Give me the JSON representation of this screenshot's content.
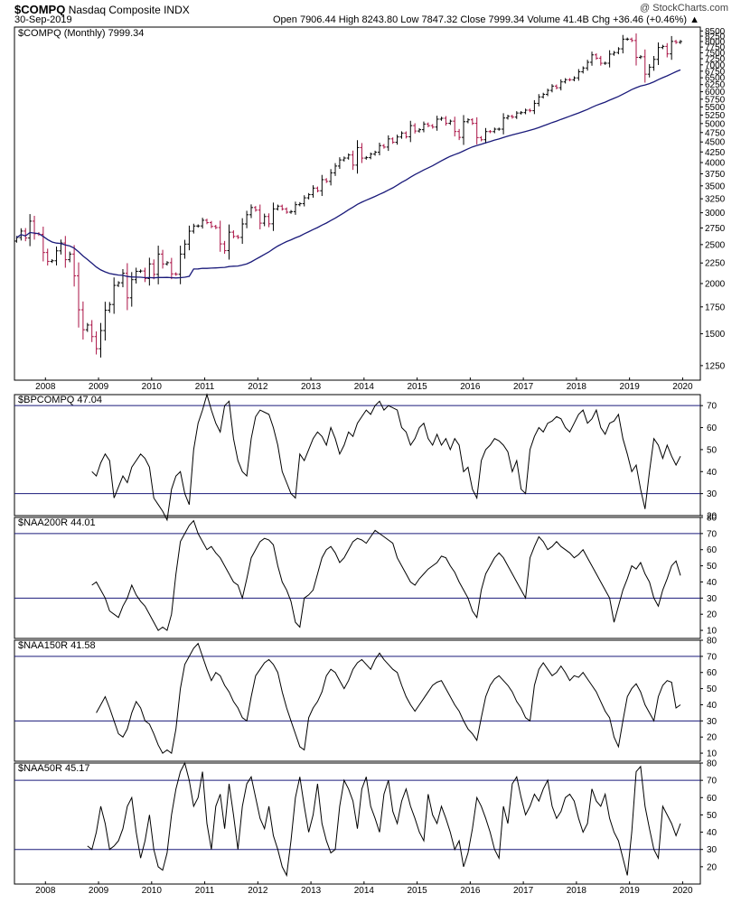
{
  "header": {
    "symbol": "$COMPQ",
    "name": "Nasdaq Composite INDX",
    "date": "30-Sep-2019",
    "ohlc": "Open 7906.44  High 8243.80  Low 7847.32  Close 7999.34  Volume 41.4B  Chg +36.46 (+0.46%) ▲",
    "logo": "@ StockCharts.com",
    "symbol_color": "#000000",
    "up_color": "#000000",
    "down_color": "#aa1144",
    "ma_color": "#1a1a7a",
    "band_color": "#1a1a7a"
  },
  "chart_data": [
    {
      "type": "ohlc",
      "title": "$COMPQ (Monthly) 7999.34",
      "log_scale": true,
      "ylim": [
        1150,
        8600
      ],
      "y_ticks": [
        1250,
        1500,
        1750,
        2000,
        2250,
        2500,
        2750,
        3000,
        3250,
        3500,
        3750,
        4000,
        4250,
        4500,
        4750,
        5000,
        5250,
        5500,
        5750,
        6000,
        6250,
        6500,
        6750,
        7000,
        7250,
        7500,
        7750,
        8000,
        8250,
        8500
      ],
      "x_tick_labels": [
        "2008",
        "2009",
        "2010",
        "2011",
        "2012",
        "2013",
        "2014",
        "2015",
        "2016",
        "2017",
        "2018",
        "2019",
        "2020"
      ],
      "x_range": [
        "2007-06",
        "2020-05"
      ],
      "close": [
        2603,
        2701,
        2596,
        2859,
        2661,
        2652,
        2389,
        2271,
        2279,
        2412,
        2523,
        2293,
        2368,
        2091,
        1721,
        1535,
        1577,
        1476,
        1377,
        1528,
        1717,
        1774,
        1979,
        2009,
        2122,
        1843,
        2045,
        2145,
        2149,
        2058,
        2238,
        2108,
        2368,
        2238,
        2254,
        2114,
        2109,
        2368,
        2507,
        2700,
        2781,
        2782,
        2874,
        2835,
        2774,
        2756,
        2510,
        2415,
        2684,
        2620,
        2605,
        2814,
        2966,
        3091,
        3046,
        2827,
        2936,
        2816,
        3067,
        3116,
        3066,
        3010,
        3020,
        3142,
        3160,
        3268,
        3328,
        3455,
        3403,
        3626,
        3590,
        3771,
        3920,
        4060,
        4104,
        4177,
        3941,
        4358,
        4103,
        4114,
        4198,
        4243,
        4408,
        4370,
        4580,
        4493,
        4631,
        4736,
        4635,
        4942,
        4791,
        4828,
        4987,
        4941,
        4901,
        5128,
        5154,
        5008,
        5070,
        4777,
        4620,
        5054,
        5109,
        5007,
        4614,
        4558,
        4776,
        4775,
        4843,
        4843,
        5162,
        5213,
        5189,
        5312,
        5324,
        5399,
        5383,
        5614,
        5825,
        5912,
        6047,
        6198,
        6140,
        6348,
        6429,
        6428,
        6496,
        6728,
        6874,
        7103,
        7411,
        7273,
        7063,
        7066,
        7442,
        7510,
        7672,
        8110,
        8110,
        8046,
        7306,
        7331,
        6635,
        6907,
        7222,
        7729,
        7780,
        7453,
        8006,
        7962,
        7999
      ],
      "ma_period": 40,
      "ma_label": "MA(40)"
    },
    {
      "type": "line",
      "title": "$BPCOMPQ 47.04",
      "ylim": [
        20,
        75
      ],
      "y_ticks": [
        20,
        30,
        40,
        50,
        60,
        70
      ],
      "bands": [
        30,
        70
      ],
      "values": [
        40,
        38,
        44,
        48,
        45,
        28,
        33,
        38,
        35,
        42,
        45,
        48,
        46,
        42,
        28,
        25,
        22,
        18,
        32,
        38,
        40,
        30,
        25,
        50,
        62,
        68,
        75,
        68,
        62,
        58,
        70,
        72,
        55,
        45,
        40,
        38,
        55,
        65,
        68,
        67,
        66,
        60,
        52,
        40,
        35,
        30,
        28,
        48,
        45,
        50,
        55,
        58,
        56,
        52,
        60,
        55,
        48,
        52,
        58,
        56,
        62,
        65,
        68,
        66,
        70,
        72,
        68,
        70,
        69,
        68,
        60,
        58,
        52,
        55,
        60,
        62,
        55,
        52,
        57,
        52,
        55,
        50,
        55,
        52,
        40,
        42,
        32,
        28,
        45,
        50,
        52,
        55,
        54,
        52,
        49,
        40,
        45,
        32,
        30,
        50,
        56,
        60,
        58,
        62,
        63,
        65,
        64,
        60,
        58,
        62,
        66,
        68,
        62,
        64,
        68,
        60,
        57,
        62,
        63,
        66,
        55,
        48,
        40,
        43,
        32,
        23,
        40,
        55,
        52,
        46,
        52,
        47,
        43,
        47
      ],
      "offset": 0
    },
    {
      "type": "line",
      "title": "$NAA200R 44.01",
      "ylim": [
        5,
        80
      ],
      "y_ticks": [
        10,
        20,
        30,
        40,
        50,
        60,
        70,
        80
      ],
      "bands": [
        30,
        70
      ],
      "values": [
        38,
        40,
        35,
        30,
        22,
        20,
        18,
        25,
        30,
        38,
        32,
        28,
        25,
        20,
        15,
        10,
        12,
        10,
        20,
        45,
        65,
        70,
        75,
        78,
        70,
        65,
        60,
        62,
        58,
        55,
        50,
        45,
        40,
        38,
        30,
        42,
        55,
        60,
        65,
        67,
        66,
        63,
        50,
        40,
        35,
        28,
        15,
        12,
        30,
        32,
        35,
        45,
        55,
        60,
        62,
        58,
        52,
        55,
        60,
        65,
        67,
        66,
        64,
        68,
        72,
        70,
        68,
        66,
        64,
        55,
        50,
        45,
        40,
        38,
        42,
        45,
        48,
        50,
        52,
        56,
        55,
        50,
        46,
        40,
        35,
        30,
        22,
        18,
        35,
        45,
        50,
        55,
        58,
        55,
        50,
        45,
        40,
        35,
        30,
        55,
        62,
        68,
        65,
        60,
        62,
        65,
        62,
        60,
        58,
        55,
        57,
        60,
        55,
        50,
        45,
        40,
        35,
        30,
        15,
        25,
        35,
        42,
        50,
        48,
        52,
        45,
        40,
        30,
        25,
        35,
        42,
        50,
        53,
        44
      ],
      "offset": 0
    },
    {
      "type": "line",
      "title": "$NAA150R 41.58",
      "ylim": [
        5,
        80
      ],
      "y_ticks": [
        10,
        20,
        30,
        40,
        50,
        60,
        70,
        80
      ],
      "bands": [
        30,
        70
      ],
      "values": [
        35,
        40,
        45,
        38,
        30,
        22,
        20,
        25,
        35,
        42,
        38,
        30,
        28,
        22,
        15,
        10,
        12,
        10,
        25,
        50,
        65,
        70,
        75,
        78,
        70,
        62,
        55,
        60,
        58,
        52,
        48,
        42,
        38,
        32,
        30,
        45,
        58,
        62,
        66,
        68,
        65,
        60,
        48,
        38,
        30,
        22,
        14,
        12,
        32,
        38,
        42,
        48,
        58,
        62,
        60,
        55,
        50,
        55,
        62,
        66,
        68,
        65,
        62,
        68,
        72,
        68,
        65,
        62,
        60,
        52,
        45,
        40,
        36,
        40,
        44,
        48,
        52,
        54,
        55,
        50,
        45,
        40,
        36,
        30,
        25,
        22,
        18,
        32,
        45,
        52,
        56,
        58,
        55,
        52,
        48,
        42,
        38,
        32,
        30,
        52,
        62,
        66,
        62,
        58,
        60,
        64,
        60,
        55,
        58,
        57,
        60,
        56,
        52,
        48,
        42,
        36,
        32,
        20,
        14,
        30,
        45,
        50,
        53,
        48,
        40,
        35,
        30,
        45,
        52,
        55,
        54,
        38,
        40
      ],
      "offset": 0
    },
    {
      "type": "line",
      "title": "$NAA50R 45.17",
      "ylim": [
        10,
        80
      ],
      "y_ticks": [
        20,
        30,
        40,
        50,
        60,
        70,
        80
      ],
      "bands": [
        30,
        70
      ],
      "values": [
        32,
        30,
        40,
        55,
        45,
        30,
        32,
        35,
        42,
        55,
        60,
        40,
        25,
        35,
        50,
        30,
        20,
        18,
        28,
        50,
        65,
        75,
        80,
        70,
        55,
        60,
        75,
        45,
        30,
        55,
        62,
        42,
        68,
        50,
        30,
        55,
        68,
        72,
        60,
        48,
        42,
        55,
        38,
        30,
        20,
        15,
        35,
        60,
        72,
        55,
        40,
        50,
        68,
        45,
        35,
        28,
        30,
        55,
        70,
        65,
        58,
        42,
        65,
        72,
        55,
        48,
        40,
        62,
        70,
        52,
        45,
        58,
        65,
        55,
        48,
        40,
        35,
        62,
        50,
        45,
        55,
        48,
        40,
        30,
        35,
        20,
        28,
        42,
        60,
        55,
        48,
        40,
        30,
        25,
        55,
        45,
        68,
        72,
        60,
        50,
        55,
        62,
        58,
        65,
        70,
        55,
        48,
        52,
        60,
        62,
        58,
        48,
        40,
        45,
        65,
        58,
        55,
        62,
        48,
        40,
        35,
        25,
        15,
        40,
        75,
        78,
        55,
        42,
        30,
        25,
        55,
        50,
        45,
        38,
        45
      ],
      "offset": 0
    }
  ]
}
